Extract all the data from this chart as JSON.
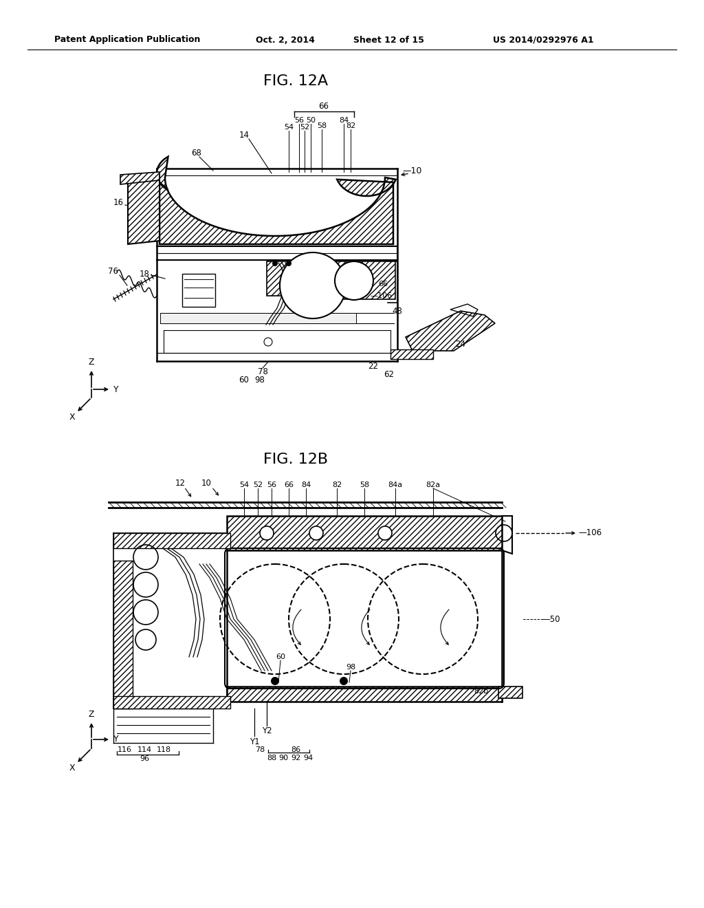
{
  "title_header": "Patent Application Publication",
  "date_header": "Oct. 2, 2014",
  "sheet_header": "Sheet 12 of 15",
  "patent_header": "US 2014/0292976 A1",
  "fig12a_title": "FIG. 12A",
  "fig12b_title": "FIG. 12B",
  "background_color": "#ffffff",
  "line_color": "#000000",
  "text_color": "#000000"
}
